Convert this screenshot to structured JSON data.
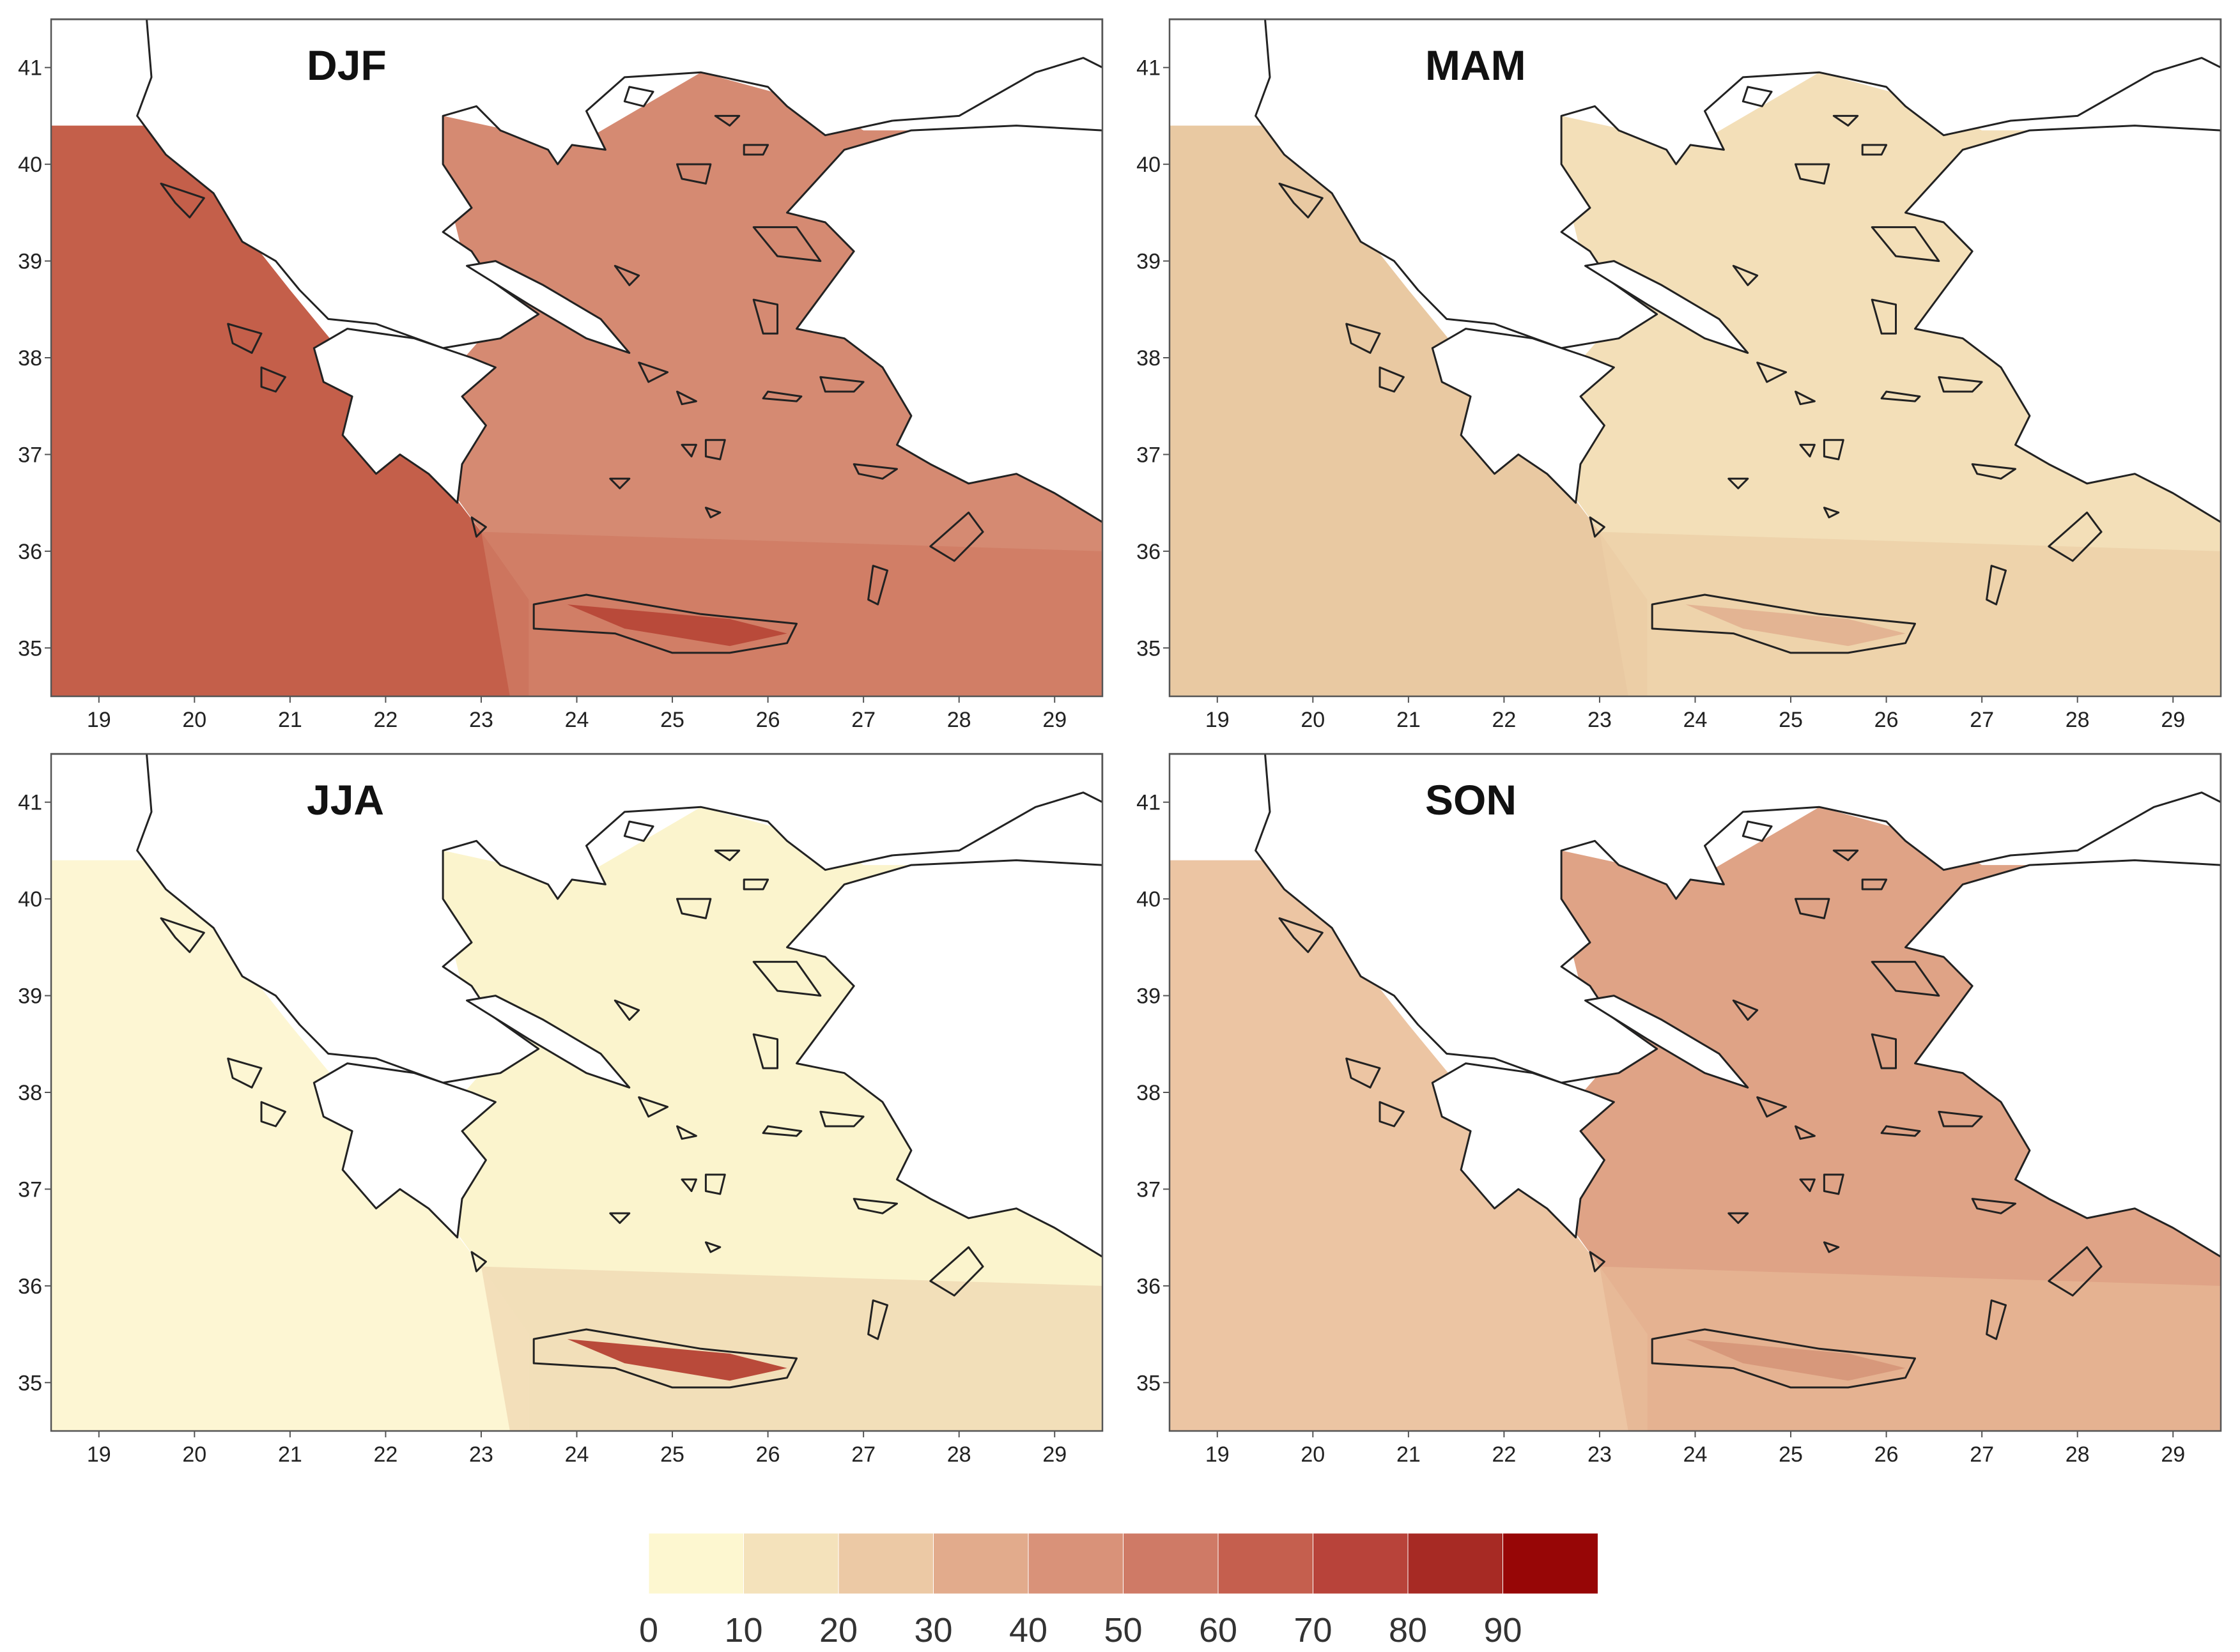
{
  "figure": {
    "panels": [
      {
        "id": "djf",
        "label": "DJF",
        "land_fill": "#d58a72",
        "sea_west": "#c45f4a",
        "sea_south": "#d07a63",
        "hot_fill": "#b94a3a"
      },
      {
        "id": "mam",
        "label": "MAM",
        "land_fill": "#f3dfb8",
        "sea_west": "#e9c9a2",
        "sea_south": "#eccfa8",
        "hot_fill": "#e3b493"
      },
      {
        "id": "jja",
        "label": "JJA",
        "land_fill": "#fbf4cd",
        "sea_west": "#fdf6d3",
        "sea_south": "#f0d9b4",
        "hot_fill": "#b94a3a"
      },
      {
        "id": "son",
        "label": "SON",
        "land_fill": "#dfa386",
        "sea_west": "#ecc5a3",
        "sea_south": "#e6b593",
        "hot_fill": "#d7987b"
      }
    ],
    "x_ticks": [
      "19",
      "20",
      "21",
      "22",
      "23",
      "24",
      "25",
      "26",
      "27",
      "28",
      "29"
    ],
    "y_ticks": [
      "35",
      "36",
      "37",
      "38",
      "39",
      "40",
      "41"
    ],
    "colorbar": {
      "tick_labels": [
        "0",
        "10",
        "20",
        "30",
        "40",
        "50",
        "60",
        "70",
        "80",
        "90"
      ],
      "colors": [
        "#fdf7d0",
        "#f4e2bb",
        "#ecc9a5",
        "#e2ab8c",
        "#d99279",
        "#cf7a66",
        "#c55f4e",
        "#b8433a",
        "#a72a24",
        "#970606"
      ]
    },
    "outline_color": "#222222"
  },
  "chart_data": {
    "type": "heatmap",
    "panels": [
      "DJF",
      "MAM",
      "JJA",
      "SON"
    ],
    "x_range": [
      18.5,
      29.5
    ],
    "y_range": [
      34.5,
      41.5
    ],
    "x_ticks": [
      19,
      20,
      21,
      22,
      23,
      24,
      25,
      26,
      27,
      28,
      29
    ],
    "y_ticks": [
      35,
      36,
      37,
      38,
      39,
      40,
      41
    ],
    "colorbar_range": [
      0,
      100
    ],
    "colorbar_levels": [
      0,
      10,
      20,
      30,
      40,
      50,
      60,
      70,
      80,
      90
    ]
  }
}
